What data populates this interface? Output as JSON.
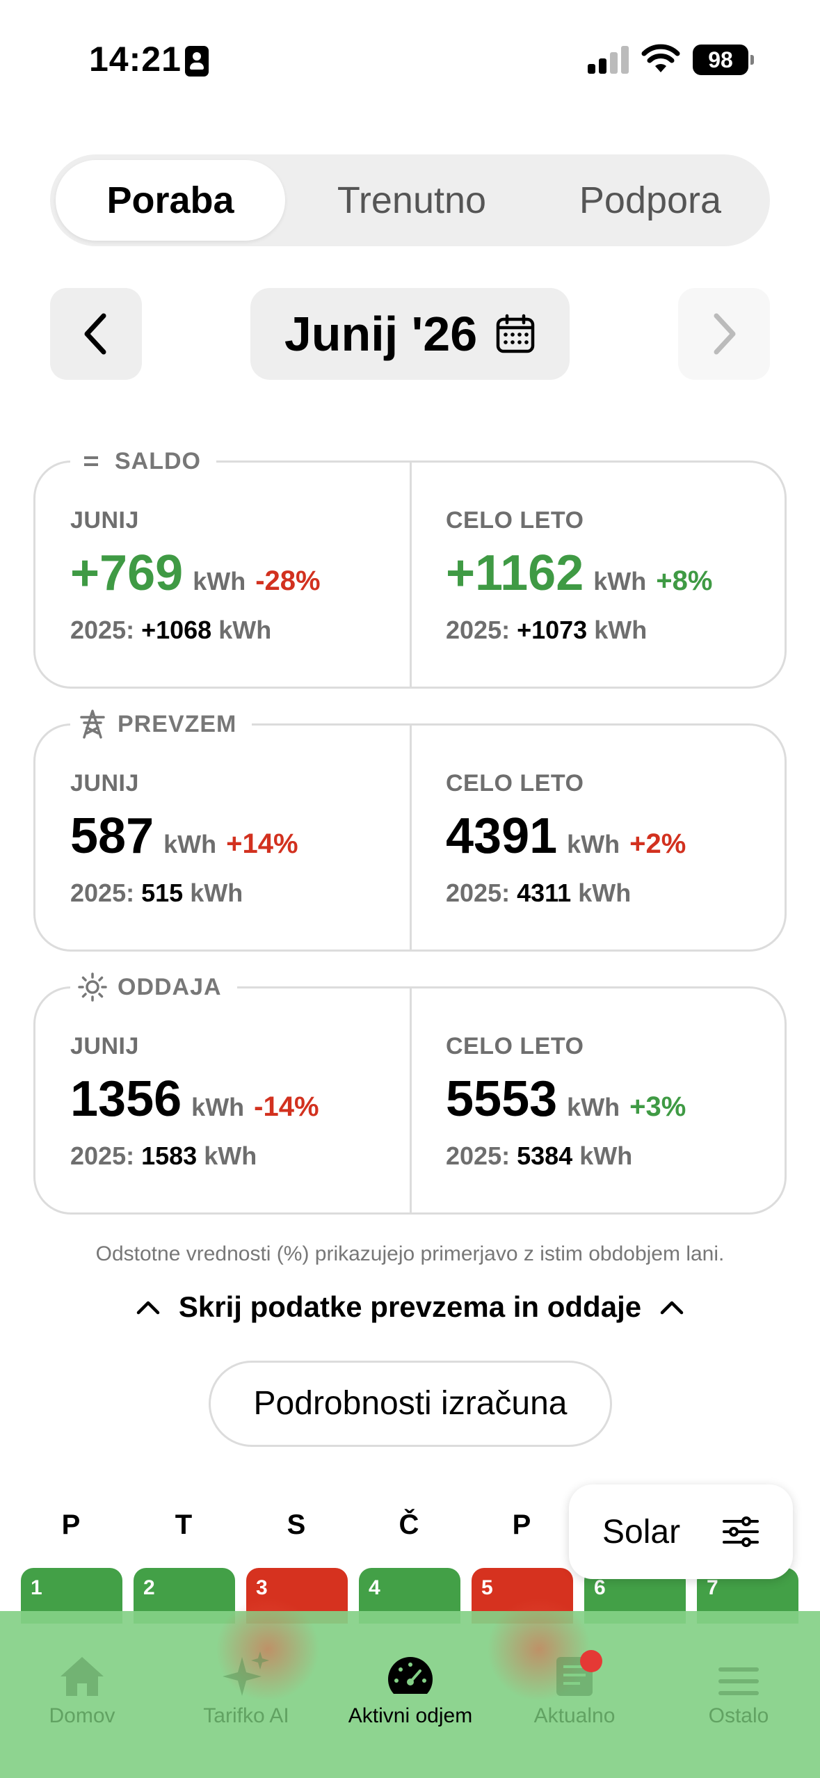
{
  "status": {
    "time": "14:21",
    "battery": "98"
  },
  "segments": [
    "Poraba",
    "Trenutno",
    "Podpora"
  ],
  "month": {
    "label": "Junij '26"
  },
  "cards": {
    "saldo": {
      "label": "SALDO",
      "left": {
        "period": "JUNIJ",
        "value": "+769",
        "unit": "kWh",
        "pct": "-28%",
        "prev_label": "2025:",
        "prev_value": "+1068",
        "prev_unit": "kWh"
      },
      "right": {
        "period": "CELO LETO",
        "value": "+1162",
        "unit": "kWh",
        "pct": "+8%",
        "prev_label": "2025:",
        "prev_value": "+1073",
        "prev_unit": "kWh"
      }
    },
    "prevzem": {
      "label": "PREVZEM",
      "left": {
        "period": "JUNIJ",
        "value": "587",
        "unit": "kWh",
        "pct": "+14%",
        "prev_label": "2025:",
        "prev_value": "515",
        "prev_unit": "kWh"
      },
      "right": {
        "period": "CELO LETO",
        "value": "4391",
        "unit": "kWh",
        "pct": "+2%",
        "prev_label": "2025:",
        "prev_value": "4311",
        "prev_unit": "kWh"
      }
    },
    "oddaja": {
      "label": "ODDAJA",
      "left": {
        "period": "JUNIJ",
        "value": "1356",
        "unit": "kWh",
        "pct": "-14%",
        "prev_label": "2025:",
        "prev_value": "1583",
        "prev_unit": "kWh"
      },
      "right": {
        "period": "CELO LETO",
        "value": "5553",
        "unit": "kWh",
        "pct": "+3%",
        "prev_label": "2025:",
        "prev_value": "5384",
        "prev_unit": "kWh"
      }
    }
  },
  "note": "Odstotne vrednosti (%) prikazujejo primerjavo z istim obdobjem lani.",
  "toggle_label": "Skrij podatke prevzema in oddaje",
  "details_button": "Podrobnosti izračuna",
  "calendar": {
    "weekdays": [
      "P",
      "T",
      "S",
      "Č",
      "P"
    ],
    "days": [
      "1",
      "2",
      "3",
      "4",
      "5",
      "6",
      "7"
    ]
  },
  "solar_button": "Solar",
  "tabs": [
    "Domov",
    "Tarifko AI",
    "Aktivni odjem",
    "Aktualno",
    "Ostalo"
  ],
  "colors": {
    "positive": "#3f9a44",
    "negative": "#d2311f",
    "tabbar": "#84d087"
  }
}
